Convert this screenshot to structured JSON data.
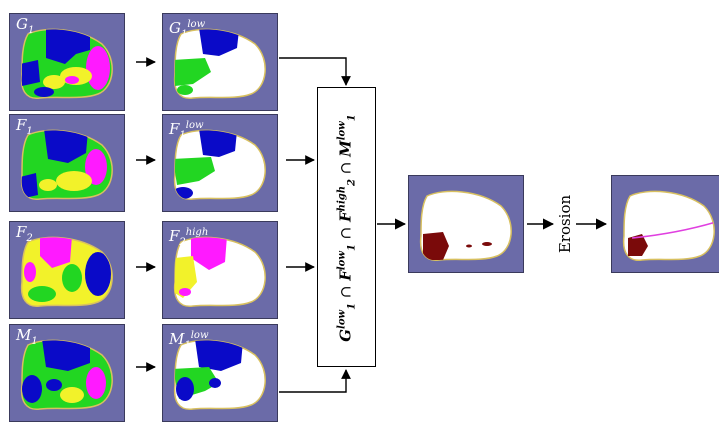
{
  "panels": {
    "g1": {
      "name": "G",
      "sub": "1",
      "sup": ""
    },
    "f1": {
      "name": "F",
      "sub": "1",
      "sup": ""
    },
    "f2": {
      "name": "F",
      "sub": "2",
      "sup": ""
    },
    "m1": {
      "name": "M",
      "sub": "1",
      "sup": ""
    },
    "g1_low": {
      "name": "G",
      "sub": "1",
      "sup": "low"
    },
    "f1_low": {
      "name": "F",
      "sub": "1",
      "sup": "low"
    },
    "f2_high": {
      "name": "F",
      "sub": "2",
      "sup": "high"
    },
    "m1_low": {
      "name": "M",
      "sub": "1",
      "sup": "low"
    }
  },
  "formula": {
    "g": "G",
    "g_sup": "low",
    "g_sub": "1",
    "cap1": " ∩ ",
    "f1": "F",
    "f1_sup": "low",
    "f1_sub": "1",
    "cap2": " ∩ ",
    "f2": "F",
    "f2_sup": "high",
    "f2_sub": "2",
    "cap3": " ∩ ",
    "m": "M",
    "m_sup": "low",
    "m_sub": "1"
  },
  "erosion_label": "Erosion",
  "colors": {
    "background": "#6b6ba8",
    "blue": "#0a0ac8",
    "green": "#22d622",
    "yellow": "#f2f22a",
    "magenta": "#ff1aff",
    "white": "#ffffff",
    "maroon": "#7a0a0a",
    "outline": "#d8c060"
  }
}
